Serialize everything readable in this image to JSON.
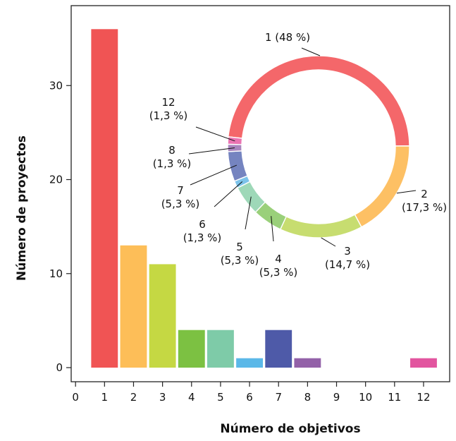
{
  "chart_data": [
    {
      "type": "bar",
      "xlabel": "Número de objetivos",
      "ylabel": "Número de proyectos",
      "x_ticks": [
        "0",
        "1",
        "2",
        "3",
        "4",
        "5",
        "6",
        "7",
        "8",
        "9",
        "10",
        "11",
        "12"
      ],
      "y_ticks": [
        "0",
        "10",
        "20",
        "30"
      ],
      "xlim": [
        -0.15,
        12.9
      ],
      "ylim": [
        -1.5,
        38.5
      ],
      "grid": false,
      "bars": [
        {
          "x": 1,
          "value": 36,
          "color": "#F05454"
        },
        {
          "x": 2,
          "value": 13,
          "color": "#FDBE58"
        },
        {
          "x": 3,
          "value": 11,
          "color": "#C5D843"
        },
        {
          "x": 4,
          "value": 4,
          "color": "#7CC142"
        },
        {
          "x": 5,
          "value": 4,
          "color": "#7ECBA8"
        },
        {
          "x": 6,
          "value": 1,
          "color": "#5BB8E8"
        },
        {
          "x": 7,
          "value": 4,
          "color": "#4E5AA8"
        },
        {
          "x": 8,
          "value": 1,
          "color": "#9361A8"
        },
        {
          "x": 12,
          "value": 1,
          "color": "#E2559F"
        }
      ]
    },
    {
      "type": "pie",
      "style": "donut",
      "slices": [
        {
          "category": "1",
          "percent": 48,
          "label_line1": "1 (48 %)",
          "label_line2": "",
          "color": "#F4676A"
        },
        {
          "category": "2",
          "percent": 17.3,
          "label_line1": "2",
          "label_line2": "(17,3 %)",
          "color": "#FDC064"
        },
        {
          "category": "3",
          "percent": 14.7,
          "label_line1": "3",
          "label_line2": "(14,7 %)",
          "color": "#C7DD70"
        },
        {
          "category": "4",
          "percent": 5.3,
          "label_line1": "4",
          "label_line2": "(5,3 %)",
          "color": "#9AD07A"
        },
        {
          "category": "5",
          "percent": 5.3,
          "label_line1": "5",
          "label_line2": "(5,3 %)",
          "color": "#9ED8B8"
        },
        {
          "category": "6",
          "percent": 1.3,
          "label_line1": "6",
          "label_line2": "(1,3 %)",
          "color": "#7CC3EA"
        },
        {
          "category": "7",
          "percent": 5.3,
          "label_line1": "7",
          "label_line2": "(5,3 %)",
          "color": "#7584C0"
        },
        {
          "category": "8",
          "percent": 1.3,
          "label_line1": "8",
          "label_line2": "(1,3 %)",
          "color": "#A986BE"
        },
        {
          "category": "12",
          "percent": 1.3,
          "label_line1": "12",
          "label_line2": "(1,3 %)",
          "color": "#EA74B2"
        }
      ]
    }
  ]
}
